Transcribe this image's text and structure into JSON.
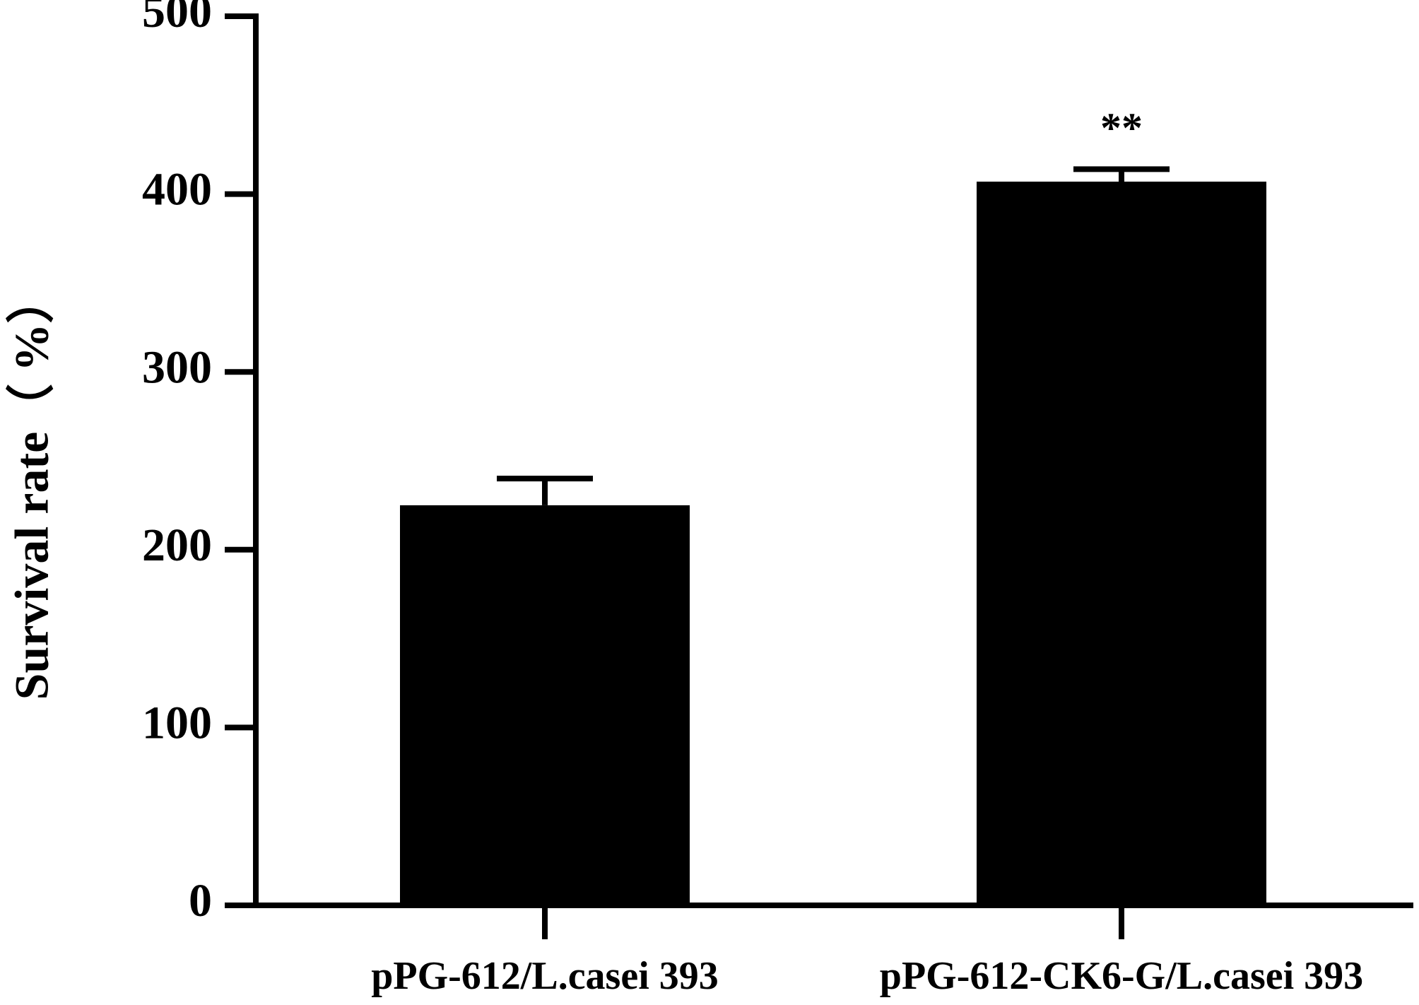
{
  "chart_data": {
    "type": "bar",
    "y_label": "Survival rate（ %）",
    "categories": [
      "pPG-612/L.casei 393",
      "pPG-612-CK6-G/L.casei 393"
    ],
    "values": [
      225,
      407
    ],
    "errors": [
      15,
      7
    ],
    "significance": [
      null,
      "**"
    ],
    "color": "#000000",
    "ylim": [
      0,
      500
    ],
    "yticks": [
      0,
      100,
      200,
      300,
      400,
      500
    ],
    "grid": false
  }
}
